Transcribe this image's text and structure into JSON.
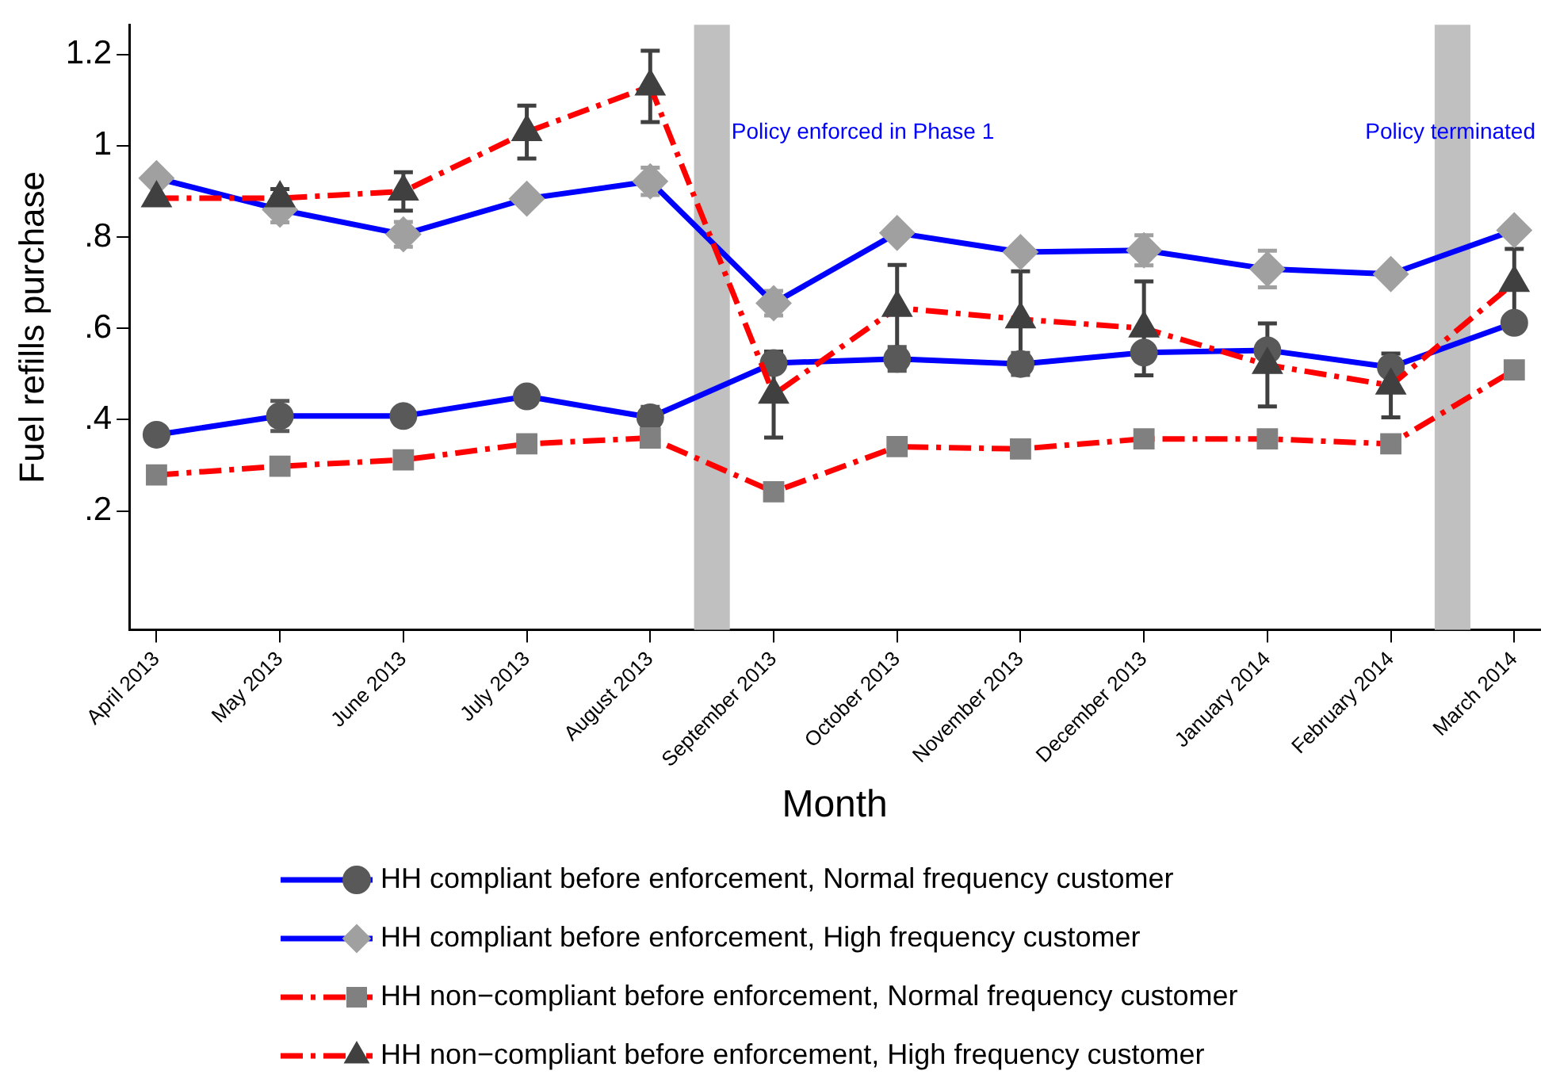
{
  "chart_data": {
    "type": "line",
    "xlabel": "Month",
    "ylabel": "Fuel refills purchase",
    "categories": [
      "April 2013",
      "May 2013",
      "June 2013",
      "July 2013",
      "August 2013",
      "September 2013",
      "October 2013",
      "November 2013",
      "December 2013",
      "January 2014",
      "February 2014",
      "March 2014"
    ],
    "ylim": [
      -0.06,
      1.265
    ],
    "yticks": [
      {
        "value": 0.2,
        "label": ".2"
      },
      {
        "value": 0.4,
        "label": ".4"
      },
      {
        "value": 0.6,
        "label": ".6"
      },
      {
        "value": 0.8,
        "label": ".8"
      },
      1,
      1.2
    ],
    "grid": false,
    "legend": "bottom",
    "bands": [
      {
        "axis": "x",
        "from": "August 2013",
        "to": "September 2013",
        "label": "Policy enforced in Phase 1",
        "color": "#c0c0c0"
      },
      {
        "axis": "x",
        "from": "February 2014",
        "to": "March 2014",
        "label": "Policy terminated",
        "color": "#c0c0c0"
      }
    ],
    "series": [
      {
        "name": "HH compliant before enforcement, Normal frequency customer",
        "color": "#0000ff",
        "marker": "circle",
        "line_style": "solid",
        "colors": [
          "#595959",
          "#595959",
          "#595959",
          "#595959",
          "#595959",
          "#595959",
          "#595959",
          "#595959",
          "#595959",
          "#595959",
          "#595959",
          "#595959"
        ],
        "values": [
          0.367,
          0.408,
          0.408,
          0.451,
          0.405,
          0.524,
          0.533,
          0.522,
          0.547,
          0.552,
          0.515,
          0.612
        ],
        "errors": [
          null,
          0.033,
          null,
          null,
          0.023,
          null,
          0.026,
          0.024,
          null,
          null,
          null,
          null
        ]
      },
      {
        "name": "HH compliant before enforcement, High frequency customer",
        "color": "#0000ff",
        "marker": "diamond",
        "line_style": "solid",
        "colors": [
          "#a0a0a0",
          "#a0a0a0",
          "#a0a0a0",
          "#a0a0a0",
          "#a0a0a0",
          "#a0a0a0",
          "#a0a0a0",
          "#a0a0a0",
          "#a0a0a0",
          "#a0a0a0",
          "#a0a0a0",
          "#a0a0a0"
        ],
        "values": [
          0.929,
          0.86,
          0.806,
          0.884,
          0.922,
          0.655,
          0.809,
          0.767,
          0.771,
          0.73,
          0.719,
          0.815
        ],
        "errors": [
          null,
          0.028,
          0.027,
          null,
          0.03,
          0.027,
          null,
          null,
          0.033,
          0.04,
          null,
          null
        ]
      },
      {
        "name": "HH non−compliant before enforcement, Normal frequency customer",
        "color": "#ff0000",
        "marker": "square",
        "line_style": "dashed",
        "colors": [
          "#808080",
          "#808080",
          "#808080",
          "#808080",
          "#808080",
          "#808080",
          "#808080",
          "#808080",
          "#808080",
          "#808080",
          "#808080",
          "#808080"
        ],
        "values": [
          0.279,
          0.298,
          0.312,
          0.347,
          0.36,
          0.242,
          0.341,
          0.336,
          0.358,
          0.358,
          0.347,
          0.509
        ]
      },
      {
        "name": "HH non−compliant before enforcement, High frequency customer",
        "color": "#ff0000",
        "marker": "triangle",
        "line_style": "dashed",
        "colors": [
          "#404040",
          "#404040",
          "#404040",
          "#404040",
          "#404040",
          "#404040",
          "#404040",
          "#404040",
          "#404040",
          "#404040",
          "#404040",
          "#404040"
        ],
        "values": [
          0.885,
          0.885,
          0.9,
          1.03,
          1.13,
          0.455,
          0.645,
          0.62,
          0.6,
          0.52,
          0.475,
          0.7
        ],
        "errors": [
          null,
          0.02,
          0.042,
          0.058,
          0.078,
          0.094,
          0.094,
          0.105,
          0.103,
          0.091,
          0.07,
          0.074
        ]
      }
    ]
  }
}
